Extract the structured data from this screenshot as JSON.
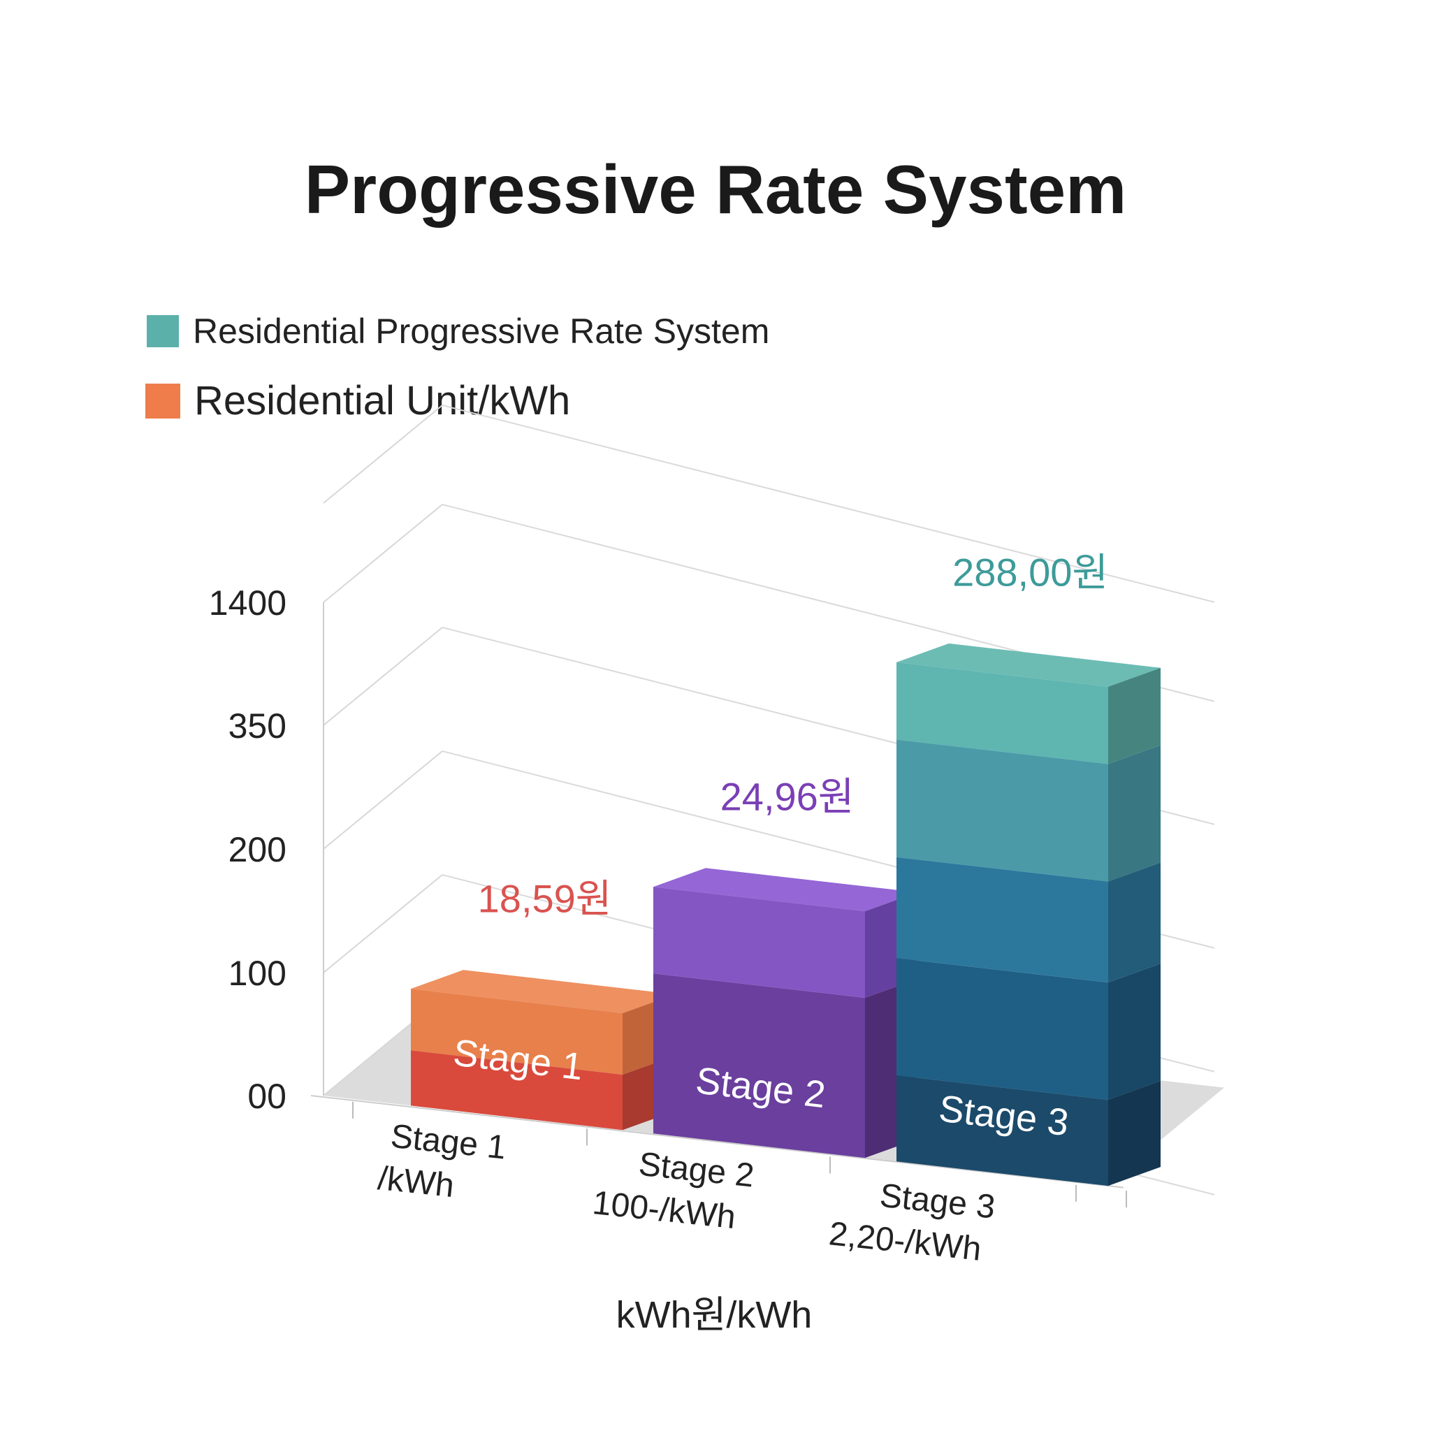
{
  "chart_data": {
    "type": "bar",
    "title": "Progressive Rate System",
    "legend": [
      {
        "label": "Residential Progressive Rate System",
        "color": "#5bb0aa"
      },
      {
        "label": "Residential Unit/kWh",
        "color": "#ee7d4b"
      }
    ],
    "legend_position": "top-left",
    "y_tick_labels": [
      "00",
      "100",
      "200",
      "350",
      "1400"
    ],
    "x_tick_labels": [
      [
        "Stage 1",
        "/kWh"
      ],
      [
        "Stage 2",
        "100-/kWh"
      ],
      [
        "Stage 3",
        "2,20-/kWh"
      ]
    ],
    "xlabel": "kWh원/kWh",
    "ylabel": "",
    "grid": true,
    "bars": [
      {
        "stage_label": "Stage 1",
        "value_label": "18,59원",
        "value": 95,
        "label_color": "#d9534f",
        "segments": [
          {
            "value": 45,
            "front": "#d94a3c",
            "side": "#a83a30",
            "top": "#e7834f"
          },
          {
            "value": 50,
            "front": "#e8804c",
            "side": "#c2643a",
            "top": "#ee9060"
          }
        ]
      },
      {
        "stage_label": "Stage 2",
        "value_label": "24,96원",
        "value": 200,
        "label_color": "#7a3fb5",
        "segments": [
          {
            "value": 130,
            "front": "#6a3f9e",
            "side": "#4e2d75",
            "top": "#8a5ccc"
          },
          {
            "value": 70,
            "front": "#8456c4",
            "side": "#6440a0",
            "top": "#9466d6"
          }
        ]
      },
      {
        "stage_label": "Stage 3",
        "value_label": "288,00원",
        "value": 1450,
        "label_color": "#3d9b99",
        "segments": [
          {
            "value": 70,
            "front": "#1b4a6a",
            "side": "#143650",
            "top": "#1b4a6a"
          },
          {
            "value": 95,
            "front": "#1f5f86",
            "side": "#184866",
            "top": "#1f5f86"
          },
          {
            "value": 105,
            "front": "#2c789c",
            "side": "#225c78",
            "top": "#2c789c"
          },
          {
            "value": 520,
            "front": "#4a9aa8",
            "side": "#397783",
            "top": "#4a9aa8"
          },
          {
            "value": 660,
            "front": "#5fb5b0",
            "side": "#46857f",
            "top": "#6cbcb4"
          }
        ]
      }
    ]
  }
}
